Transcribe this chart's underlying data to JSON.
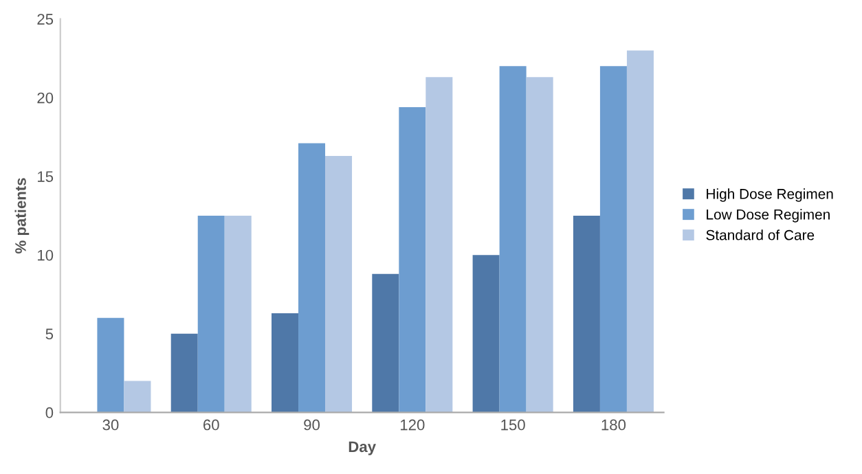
{
  "chart_data": {
    "type": "bar",
    "xlabel": "Day",
    "ylabel": "% patients",
    "categories": [
      "30",
      "60",
      "90",
      "120",
      "150",
      "180"
    ],
    "series": [
      {
        "name": "High Dose Regimen",
        "color": "#4f78a8",
        "values": [
          0,
          5,
          6.3,
          8.8,
          10,
          12.5
        ]
      },
      {
        "name": "Low Dose Regimen",
        "color": "#6d9dd0",
        "values": [
          6,
          12.5,
          17.1,
          19.4,
          22,
          22
        ]
      },
      {
        "name": "Standard of Care",
        "color": "#b4c8e4",
        "values": [
          2,
          12.5,
          16.3,
          21.3,
          21.3,
          23
        ]
      }
    ],
    "ylim": [
      0,
      25
    ],
    "yticks": [
      0,
      5,
      10,
      15,
      20,
      25
    ],
    "grid": false,
    "legend": "right"
  }
}
